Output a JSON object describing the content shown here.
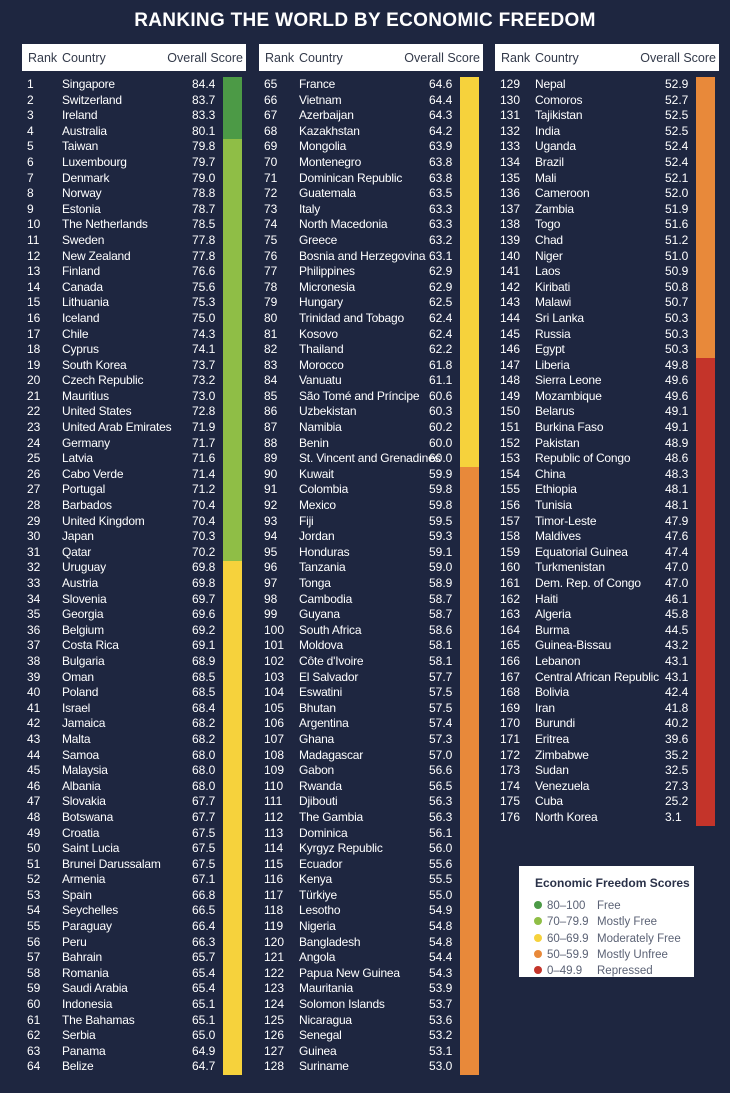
{
  "title": "RANKING THE WORLD BY ECONOMIC FREEDOM",
  "headers": {
    "rank": "Rank",
    "country": "Country",
    "score": "Overall Score"
  },
  "colors": {
    "free": "#4c9a46",
    "mostly_free": "#8fbe46",
    "moderately_free": "#f6d23c",
    "mostly_unfree": "#e8893a",
    "repressed": "#c4342a"
  },
  "legend": {
    "title": "Economic Freedom Scores",
    "items": [
      {
        "range": "80–100",
        "label": "Free",
        "color": "#4c9a46"
      },
      {
        "range": "70–79.9",
        "label": "Mostly Free",
        "color": "#8fbe46"
      },
      {
        "range": "60–69.9",
        "label": "Moderately Free",
        "color": "#f6d23c"
      },
      {
        "range": "50–59.9",
        "label": "Mostly Unfree",
        "color": "#e8893a"
      },
      {
        "range": "0–49.9",
        "label": "Repressed",
        "color": "#c4342a"
      }
    ]
  },
  "rows": [
    [
      "1",
      "Singapore",
      "84.4"
    ],
    [
      "2",
      "Switzerland",
      "83.7"
    ],
    [
      "3",
      "Ireland",
      "83.3"
    ],
    [
      "4",
      "Australia",
      "80.1"
    ],
    [
      "5",
      "Taiwan",
      "79.8"
    ],
    [
      "6",
      "Luxembourg",
      "79.7"
    ],
    [
      "7",
      "Denmark",
      "79.0"
    ],
    [
      "8",
      "Norway",
      "78.8"
    ],
    [
      "9",
      "Estonia",
      "78.7"
    ],
    [
      "10",
      "The Netherlands",
      "78.5"
    ],
    [
      "11",
      "Sweden",
      "77.8"
    ],
    [
      "12",
      "New Zealand",
      "77.8"
    ],
    [
      "13",
      "Finland",
      "76.6"
    ],
    [
      "14",
      "Canada",
      "75.6"
    ],
    [
      "15",
      "Lithuania",
      "75.3"
    ],
    [
      "16",
      "Iceland",
      "75.0"
    ],
    [
      "17",
      "Chile",
      "74.3"
    ],
    [
      "18",
      "Cyprus",
      "74.1"
    ],
    [
      "19",
      "South Korea",
      "73.7"
    ],
    [
      "20",
      "Czech Republic",
      "73.2"
    ],
    [
      "21",
      "Mauritius",
      "73.0"
    ],
    [
      "22",
      "United States",
      "72.8"
    ],
    [
      "23",
      "United Arab Emirates",
      "71.9"
    ],
    [
      "24",
      "Germany",
      "71.7"
    ],
    [
      "25",
      "Latvia",
      "71.6"
    ],
    [
      "26",
      "Cabo Verde",
      "71.4"
    ],
    [
      "27",
      "Portugal",
      "71.2"
    ],
    [
      "28",
      "Barbados",
      "70.4"
    ],
    [
      "29",
      "United Kingdom",
      "70.4"
    ],
    [
      "30",
      "Japan",
      "70.3"
    ],
    [
      "31",
      "Qatar",
      "70.2"
    ],
    [
      "32",
      "Uruguay",
      "69.8"
    ],
    [
      "33",
      "Austria",
      "69.8"
    ],
    [
      "34",
      "Slovenia",
      "69.7"
    ],
    [
      "35",
      "Georgia",
      "69.6"
    ],
    [
      "36",
      "Belgium",
      "69.2"
    ],
    [
      "37",
      "Costa Rica",
      "69.1"
    ],
    [
      "38",
      "Bulgaria",
      "68.9"
    ],
    [
      "39",
      "Oman",
      "68.5"
    ],
    [
      "40",
      "Poland",
      "68.5"
    ],
    [
      "41",
      "Israel",
      "68.4"
    ],
    [
      "42",
      "Jamaica",
      "68.2"
    ],
    [
      "43",
      "Malta",
      "68.2"
    ],
    [
      "44",
      "Samoa",
      "68.0"
    ],
    [
      "45",
      "Malaysia",
      "68.0"
    ],
    [
      "46",
      "Albania",
      "68.0"
    ],
    [
      "47",
      "Slovakia",
      "67.7"
    ],
    [
      "48",
      "Botswana",
      "67.7"
    ],
    [
      "49",
      "Croatia",
      "67.5"
    ],
    [
      "50",
      "Saint Lucia",
      "67.5"
    ],
    [
      "51",
      "Brunei Darussalam",
      "67.5"
    ],
    [
      "52",
      "Armenia",
      "67.1"
    ],
    [
      "53",
      "Spain",
      "66.8"
    ],
    [
      "54",
      "Seychelles",
      "66.5"
    ],
    [
      "55",
      "Paraguay",
      "66.4"
    ],
    [
      "56",
      "Peru",
      "66.3"
    ],
    [
      "57",
      "Bahrain",
      "65.7"
    ],
    [
      "58",
      "Romania",
      "65.4"
    ],
    [
      "59",
      "Saudi Arabia",
      "65.4"
    ],
    [
      "60",
      "Indonesia",
      "65.1"
    ],
    [
      "61",
      "The Bahamas",
      "65.1"
    ],
    [
      "62",
      "Serbia",
      "65.0"
    ],
    [
      "63",
      "Panama",
      "64.9"
    ],
    [
      "64",
      "Belize",
      "64.7"
    ],
    [
      "65",
      "France",
      "64.6"
    ],
    [
      "66",
      "Vietnam",
      "64.4"
    ],
    [
      "67",
      "Azerbaijan",
      "64.3"
    ],
    [
      "68",
      "Kazakhstan",
      "64.2"
    ],
    [
      "69",
      "Mongolia",
      "63.9"
    ],
    [
      "70",
      "Montenegro",
      "63.8"
    ],
    [
      "71",
      "Dominican Republic",
      "63.8"
    ],
    [
      "72",
      "Guatemala",
      "63.5"
    ],
    [
      "73",
      "Italy",
      "63.3"
    ],
    [
      "74",
      "North Macedonia",
      "63.3"
    ],
    [
      "75",
      "Greece",
      "63.2"
    ],
    [
      "76",
      "Bosnia and Herzegovina",
      "63.1"
    ],
    [
      "77",
      "Philippines",
      "62.9"
    ],
    [
      "78",
      "Micronesia",
      "62.9"
    ],
    [
      "79",
      "Hungary",
      "62.5"
    ],
    [
      "80",
      "Trinidad and Tobago",
      "62.4"
    ],
    [
      "81",
      "Kosovo",
      "62.4"
    ],
    [
      "82",
      "Thailand",
      "62.2"
    ],
    [
      "83",
      "Morocco",
      "61.8"
    ],
    [
      "84",
      "Vanuatu",
      "61.1"
    ],
    [
      "85",
      "São Tomé and Príncipe",
      "60.6"
    ],
    [
      "86",
      "Uzbekistan",
      "60.3"
    ],
    [
      "87",
      "Namibia",
      "60.2"
    ],
    [
      "88",
      "Benin",
      "60.0"
    ],
    [
      "89",
      "St. Vincent and Grenadines",
      "60.0"
    ],
    [
      "90",
      "Kuwait",
      "59.9"
    ],
    [
      "91",
      "Colombia",
      "59.8"
    ],
    [
      "92",
      "Mexico",
      "59.8"
    ],
    [
      "93",
      "Fiji",
      "59.5"
    ],
    [
      "94",
      "Jordan",
      "59.3"
    ],
    [
      "95",
      "Honduras",
      "59.1"
    ],
    [
      "96",
      "Tanzania",
      "59.0"
    ],
    [
      "97",
      "Tonga",
      "58.9"
    ],
    [
      "98",
      "Cambodia",
      "58.7"
    ],
    [
      "99",
      "Guyana",
      "58.7"
    ],
    [
      "100",
      "South Africa",
      "58.6"
    ],
    [
      "101",
      "Moldova",
      "58.1"
    ],
    [
      "102",
      "Côte d'Ivoire",
      "58.1"
    ],
    [
      "103",
      "El Salvador",
      "57.7"
    ],
    [
      "104",
      "Eswatini",
      "57.5"
    ],
    [
      "105",
      "Bhutan",
      "57.5"
    ],
    [
      "106",
      "Argentina",
      "57.4"
    ],
    [
      "107",
      "Ghana",
      "57.3"
    ],
    [
      "108",
      "Madagascar",
      "57.0"
    ],
    [
      "109",
      "Gabon",
      "56.6"
    ],
    [
      "110",
      "Rwanda",
      "56.5"
    ],
    [
      "111",
      "Djibouti",
      "56.3"
    ],
    [
      "112",
      "The Gambia",
      "56.3"
    ],
    [
      "113",
      "Dominica",
      "56.1"
    ],
    [
      "114",
      "Kyrgyz Republic",
      "56.0"
    ],
    [
      "115",
      "Ecuador",
      "55.6"
    ],
    [
      "116",
      "Kenya",
      "55.5"
    ],
    [
      "117",
      "Türkiye",
      "55.0"
    ],
    [
      "118",
      "Lesotho",
      "54.9"
    ],
    [
      "119",
      "Nigeria",
      "54.8"
    ],
    [
      "120",
      "Bangladesh",
      "54.8"
    ],
    [
      "121",
      "Angola",
      "54.4"
    ],
    [
      "122",
      "Papua New Guinea",
      "54.3"
    ],
    [
      "123",
      "Mauritania",
      "53.9"
    ],
    [
      "124",
      "Solomon Islands",
      "53.7"
    ],
    [
      "125",
      "Nicaragua",
      "53.6"
    ],
    [
      "126",
      "Senegal",
      "53.2"
    ],
    [
      "127",
      "Guinea",
      "53.1"
    ],
    [
      "128",
      "Suriname",
      "53.0"
    ],
    [
      "129",
      "Nepal",
      "52.9"
    ],
    [
      "130",
      "Comoros",
      "52.7"
    ],
    [
      "131",
      "Tajikistan",
      "52.5"
    ],
    [
      "132",
      "India",
      "52.5"
    ],
    [
      "133",
      "Uganda",
      "52.4"
    ],
    [
      "134",
      "Brazil",
      "52.4"
    ],
    [
      "135",
      "Mali",
      "52.1"
    ],
    [
      "136",
      "Cameroon",
      "52.0"
    ],
    [
      "137",
      "Zambia",
      "51.9"
    ],
    [
      "138",
      "Togo",
      "51.6"
    ],
    [
      "139",
      "Chad",
      "51.2"
    ],
    [
      "140",
      "Niger",
      "51.0"
    ],
    [
      "141",
      "Laos",
      "50.9"
    ],
    [
      "142",
      "Kiribati",
      "50.8"
    ],
    [
      "143",
      "Malawi",
      "50.7"
    ],
    [
      "144",
      "Sri Lanka",
      "50.3"
    ],
    [
      "145",
      "Russia",
      "50.3"
    ],
    [
      "146",
      "Egypt",
      "50.3"
    ],
    [
      "147",
      "Liberia",
      "49.8"
    ],
    [
      "148",
      "Sierra Leone",
      "49.6"
    ],
    [
      "149",
      "Mozambique",
      "49.6"
    ],
    [
      "150",
      "Belarus",
      "49.1"
    ],
    [
      "151",
      "Burkina Faso",
      "49.1"
    ],
    [
      "152",
      "Pakistan",
      "48.9"
    ],
    [
      "153",
      "Republic of Congo",
      "48.6"
    ],
    [
      "154",
      "China",
      "48.3"
    ],
    [
      "155",
      "Ethiopia",
      "48.1"
    ],
    [
      "156",
      "Tunisia",
      "48.1"
    ],
    [
      "157",
      "Timor-Leste",
      "47.9"
    ],
    [
      "158",
      "Maldives",
      "47.6"
    ],
    [
      "159",
      "Equatorial Guinea",
      "47.4"
    ],
    [
      "160",
      "Turkmenistan",
      "47.0"
    ],
    [
      "161",
      "Dem. Rep. of Congo",
      "47.0"
    ],
    [
      "162",
      "Haiti",
      "46.1"
    ],
    [
      "163",
      "Algeria",
      "45.8"
    ],
    [
      "164",
      "Burma",
      "44.5"
    ],
    [
      "165",
      "Guinea-Bissau",
      "43.2"
    ],
    [
      "166",
      "Lebanon",
      "43.1"
    ],
    [
      "167",
      "Central African Republic",
      "43.1"
    ],
    [
      "168",
      "Bolivia",
      "42.4"
    ],
    [
      "169",
      "Iran",
      "41.8"
    ],
    [
      "170",
      "Burundi",
      "40.2"
    ],
    [
      "171",
      "Eritrea",
      "39.6"
    ],
    [
      "172",
      "Zimbabwe",
      "35.2"
    ],
    [
      "173",
      "Sudan",
      "32.5"
    ],
    [
      "174",
      "Venezuela",
      "27.3"
    ],
    [
      "175",
      "Cuba",
      "25.2"
    ],
    [
      "176",
      "North Korea",
      "3.1"
    ]
  ]
}
